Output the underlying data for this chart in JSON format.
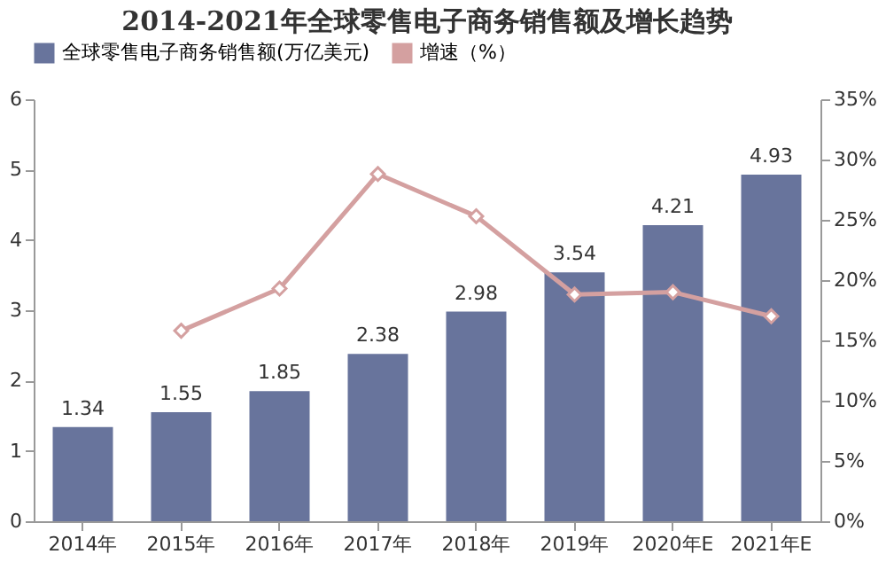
{
  "chart_data": {
    "type": "bar",
    "title": "2014-2021年全球零售电子商务销售额及增长趋势",
    "categories": [
      "2014年",
      "2015年",
      "2016年",
      "2017年",
      "2018年",
      "2019年",
      "2020年E",
      "2021年E"
    ],
    "series": [
      {
        "name": "全球零售电子商务销售额(万亿美元)",
        "color": "#68749c",
        "values": [
          1.34,
          1.55,
          1.85,
          2.38,
          2.98,
          3.54,
          4.21,
          4.93
        ],
        "value_labels": [
          "1.34",
          "1.55",
          "1.85",
          "2.38",
          "2.98",
          "3.54",
          "4.21",
          "4.93"
        ]
      },
      {
        "name": "增速（%）",
        "type": "line",
        "axis": "y2",
        "color": "#d4a0a0",
        "marker": "diamond",
        "values": [
          null,
          15.8,
          19.3,
          28.8,
          25.3,
          18.8,
          19.0,
          17.0
        ]
      }
    ],
    "ylim": [
      0,
      6
    ],
    "yticks": [
      0,
      1,
      2,
      3,
      4,
      5,
      6
    ],
    "y2lim": [
      0,
      35
    ],
    "y2ticks": [
      {
        "value": 0,
        "label": "0%"
      },
      {
        "value": 5,
        "label": "5%"
      },
      {
        "value": 10,
        "label": "10%"
      },
      {
        "value": 15,
        "label": "15%"
      },
      {
        "value": 20,
        "label": "20%"
      },
      {
        "value": 25,
        "label": "25%"
      },
      {
        "value": 30,
        "label": "30%"
      },
      {
        "value": 35,
        "label": "35%"
      }
    ],
    "grid": false,
    "legend": "top"
  }
}
